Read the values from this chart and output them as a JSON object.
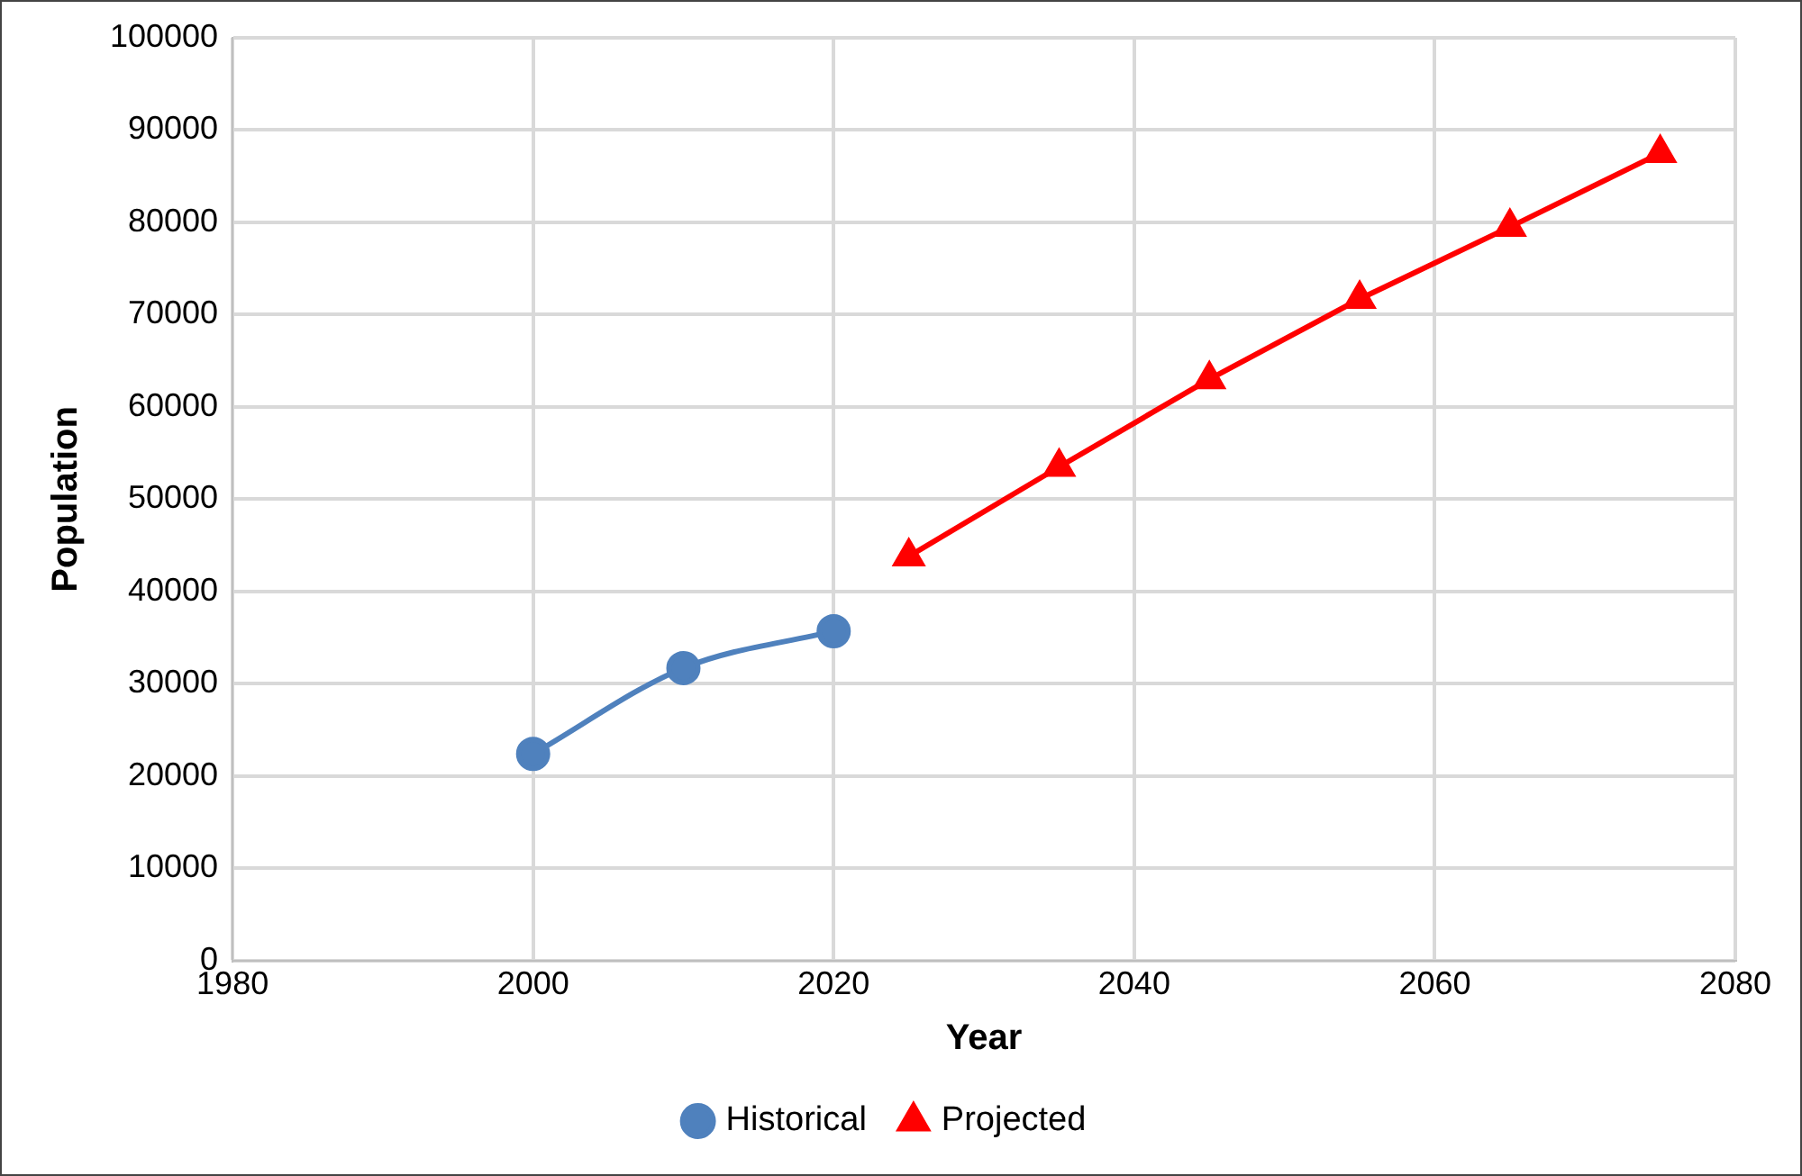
{
  "chart_data": {
    "type": "line",
    "xlabel": "Year",
    "ylabel": "Population",
    "xlim": [
      1980,
      2080
    ],
    "xticks": [
      1980,
      2000,
      2020,
      2040,
      2060,
      2080
    ],
    "ylim": [
      0,
      100000
    ],
    "yticks": [
      0,
      10000,
      20000,
      30000,
      40000,
      50000,
      60000,
      70000,
      80000,
      90000,
      100000
    ],
    "grid": true,
    "legend": "bottom",
    "series": [
      {
        "name": "Historical",
        "color": "#4f81bd",
        "marker": "circle",
        "x": [
          2000,
          2010,
          2020
        ],
        "values": [
          22400,
          31700,
          35700
        ]
      },
      {
        "name": "Projected",
        "color": "#ff0000",
        "marker": "triangle",
        "x": [
          2025,
          2035,
          2045,
          2055,
          2065,
          2075
        ],
        "values": [
          43800,
          53500,
          63000,
          71700,
          79500,
          87500
        ]
      }
    ]
  }
}
